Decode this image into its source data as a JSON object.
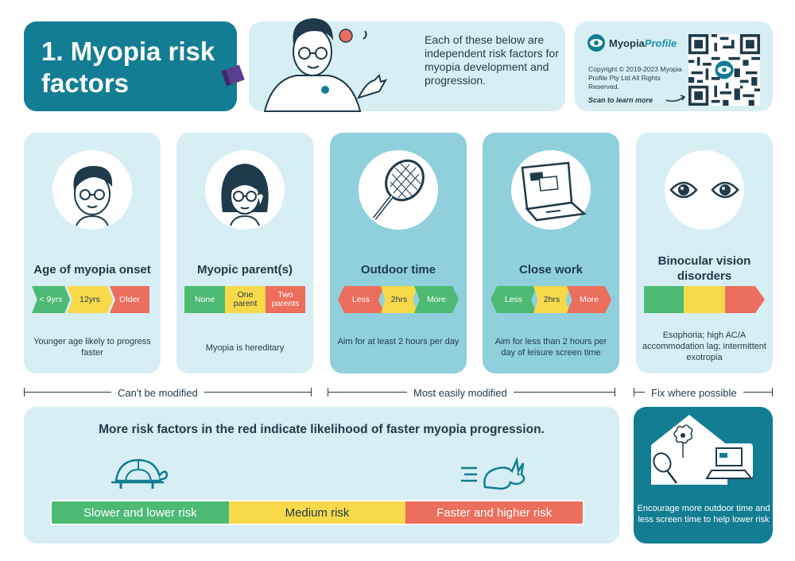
{
  "header": {
    "title": "1. Myopia risk factors",
    "intro": "Each of these below are independent risk factors for myopia development and progression.",
    "brand_name_1": "Myopia",
    "brand_name_2": "Profile",
    "copyright": "Copyright © 2019-2023 Myopia Profile Pty Ltd All Rights Reserved.",
    "scan": "Scan to learn more"
  },
  "cards": [
    {
      "title": "Age of myopia onset",
      "scale": [
        "< 9yrs",
        "12yrs",
        "Older"
      ],
      "desc": "Younger age likely to progress faster"
    },
    {
      "title": "Myopic parent(s)",
      "scale": [
        "None",
        "One parent",
        "Two parents"
      ],
      "desc": "Myopia is hereditary"
    },
    {
      "title": "Outdoor time",
      "scale": [
        "Less",
        "2hrs",
        "More"
      ],
      "desc": "Aim for at least 2 hours per day"
    },
    {
      "title": "Close work",
      "scale": [
        "Less",
        "2hrs",
        "More"
      ],
      "desc": "Aim for less than 2 hours per day of leisure screen time"
    },
    {
      "title": "Binocular vision disorders",
      "scale": [
        "",
        "",
        ""
      ],
      "desc": "Esophoria; high AC/A accommodation lag; intermittent exotropia"
    }
  ],
  "sections": {
    "cant": "Can't be modified",
    "most": "Most easily modified",
    "fix": "Fix where possible"
  },
  "bottom": {
    "title": "More risk factors in the red indicate likelihood of faster myopia progression.",
    "risk": [
      "Slower and lower risk",
      "Medium risk",
      "Faster and higher risk"
    ]
  },
  "encourage": "Encourage more outdoor time and less screen time to help lower risk",
  "icons": {
    "person": "man-with-glasses-icon",
    "boy": "boy-with-glasses-icon",
    "woman": "woman-with-glasses-icon",
    "racket": "tennis-racket-icon",
    "laptop": "laptop-icon",
    "eyes": "eyes-icon",
    "turtle": "turtle-icon",
    "rabbit": "rabbit-icon",
    "house": "house-icon",
    "qr": "qr-code"
  },
  "colors": {
    "teal": "#127d93",
    "light": "#d7eef4",
    "mid": "#8fd0dc",
    "green": "#4dba74",
    "yellow": "#f8d94a",
    "red": "#ec6e5d"
  }
}
